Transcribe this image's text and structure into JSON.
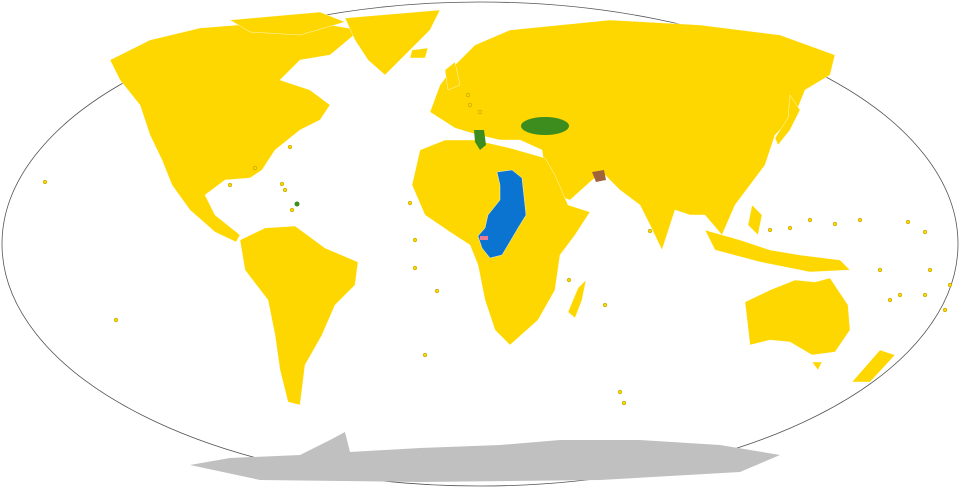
{
  "map": {
    "projection_outline": "robinson-oval",
    "colors": {
      "default": "#FFD700",
      "blue": "#0A74D0",
      "green": "#3C8C1E",
      "brown": "#A0643C",
      "pink": "#E87A9A",
      "antarctica": "#C0C0C0",
      "ocean": "#FFFFFF",
      "outline": "#555555"
    }
  }
}
